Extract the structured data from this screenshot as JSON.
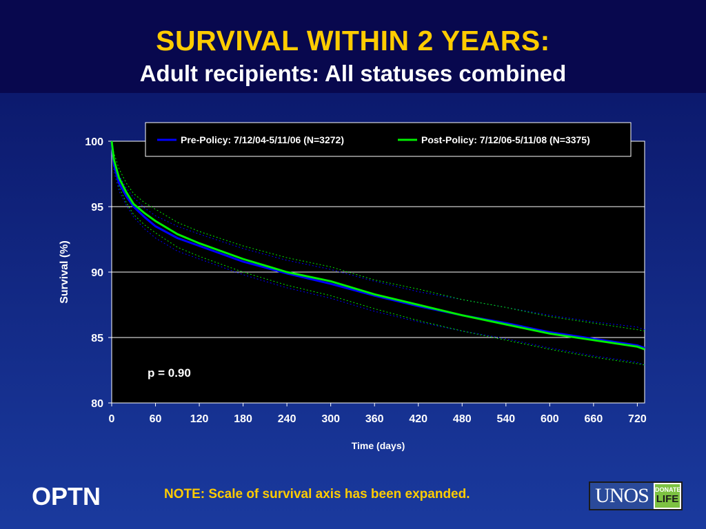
{
  "header": {
    "title": "SURVIVAL WITHIN 2 YEARS:",
    "subtitle": "Adult recipients: All statuses combined"
  },
  "footer": {
    "org": "OPTN",
    "note": "NOTE: Scale of survival axis has been expanded.",
    "logo_text": "UNOS",
    "logo_badge_top": "DONATE",
    "logo_badge_bottom": "LIFE"
  },
  "colors": {
    "title": "#ffcc00",
    "pre_policy": "#0000ff",
    "post_policy": "#00ee00",
    "plot_bg": "#000000"
  },
  "chart_data": {
    "type": "line",
    "xlabel": "Time (days)",
    "ylabel": "Survival (%)",
    "xlim": [
      0,
      730
    ],
    "ylim": [
      80,
      100
    ],
    "xticks": [
      0,
      60,
      120,
      180,
      240,
      300,
      360,
      420,
      480,
      540,
      600,
      660,
      720
    ],
    "yticks": [
      80,
      85,
      90,
      95,
      100
    ],
    "grid": "horizontal",
    "legend": "top",
    "annotation": "p = 0.90",
    "series": [
      {
        "name": "Pre-Policy: 7/12/04-5/11/06 (N=3272)",
        "color": "#0000ff",
        "x": [
          0,
          3,
          10,
          20,
          30,
          45,
          60,
          90,
          120,
          180,
          240,
          300,
          360,
          420,
          480,
          540,
          600,
          660,
          720,
          730
        ],
        "y": [
          100,
          98.2,
          96.8,
          95.8,
          95.0,
          94.2,
          93.5,
          92.6,
          92.0,
          90.8,
          89.9,
          89.1,
          88.2,
          87.4,
          86.7,
          86.1,
          85.4,
          84.9,
          84.4,
          84.2
        ],
        "ci_upper": [
          100,
          98.7,
          97.4,
          96.4,
          95.7,
          94.9,
          94.3,
          93.5,
          92.9,
          91.8,
          90.9,
          90.2,
          89.3,
          88.5,
          87.9,
          87.3,
          86.7,
          86.2,
          85.8,
          85.6
        ],
        "ci_lower": [
          100,
          97.7,
          96.2,
          95.1,
          94.2,
          93.3,
          92.6,
          91.6,
          91.0,
          89.8,
          88.8,
          88.0,
          87.0,
          86.2,
          85.5,
          84.9,
          84.2,
          83.6,
          83.1,
          82.9
        ]
      },
      {
        "name": "Post-Policy: 7/12/06-5/11/08 (N=3375)",
        "color": "#00ee00",
        "x": [
          0,
          3,
          10,
          20,
          30,
          45,
          60,
          90,
          120,
          180,
          240,
          300,
          360,
          420,
          480,
          540,
          600,
          660,
          720,
          730
        ],
        "y": [
          100,
          98.6,
          97.2,
          96.1,
          95.2,
          94.5,
          93.9,
          92.9,
          92.2,
          91.0,
          90.0,
          89.3,
          88.3,
          87.5,
          86.7,
          86.0,
          85.3,
          84.8,
          84.3,
          84.1
        ],
        "ci_upper": [
          100,
          99.1,
          97.9,
          96.8,
          96.0,
          95.3,
          94.8,
          93.8,
          93.1,
          92.0,
          91.1,
          90.4,
          89.4,
          88.7,
          87.9,
          87.3,
          86.6,
          86.1,
          85.6,
          85.5
        ],
        "ci_lower": [
          100,
          98.1,
          96.5,
          95.3,
          94.4,
          93.6,
          93.0,
          91.9,
          91.2,
          90.0,
          89.0,
          88.2,
          87.2,
          86.3,
          85.5,
          84.8,
          84.1,
          83.5,
          83.0,
          82.9
        ]
      }
    ]
  }
}
